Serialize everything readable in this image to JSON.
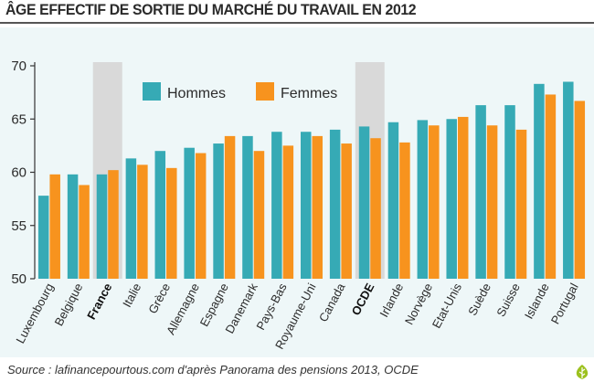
{
  "header": {
    "title": "ÂGE EFFECTIF DE SORTIE DU MARCHÉ DU TRAVAIL EN 2012"
  },
  "footer": {
    "source": "Source : lafinancepourtous.com d'après Panorama des pensions 2013, OCDE"
  },
  "colors": {
    "hommes": "#36aab5",
    "femmes": "#f7931e",
    "highlight": "#d9d9d9",
    "panel": "#eef7f8"
  },
  "chart_data": {
    "type": "bar",
    "title": "ÂGE EFFECTIF DE SORTIE DU MARCHÉ DU TRAVAIL EN 2012",
    "xlabel": "",
    "ylabel": "",
    "ylim": [
      50,
      70
    ],
    "yticks": [
      50,
      55,
      60,
      65,
      70
    ],
    "grid": false,
    "legend_position": "top-left",
    "highlighted_categories": [
      "France",
      "OCDE"
    ],
    "categories": [
      "Luxembourg",
      "Belgique",
      "France",
      "Italie",
      "Grèce",
      "Allemagne",
      "Espagne",
      "Danemark",
      "Pays-Bas",
      "Royaume-Uni",
      "Canada",
      "OCDE",
      "Irlande",
      "Norvège",
      "Etat-Unis",
      "Suède",
      "Suisse",
      "Islande",
      "Portugal"
    ],
    "series": [
      {
        "name": "Hommes",
        "values": [
          57.8,
          59.8,
          59.8,
          61.3,
          62.0,
          62.3,
          62.7,
          63.4,
          63.8,
          63.8,
          64.0,
          64.3,
          64.7,
          64.9,
          65.0,
          66.3,
          66.3,
          68.3,
          68.5
        ]
      },
      {
        "name": "Femmes",
        "values": [
          59.8,
          58.8,
          60.2,
          60.7,
          60.4,
          61.8,
          63.4,
          62.0,
          62.5,
          63.4,
          62.7,
          63.2,
          62.8,
          64.4,
          65.2,
          64.4,
          64.0,
          67.3,
          66.7
        ]
      }
    ]
  }
}
